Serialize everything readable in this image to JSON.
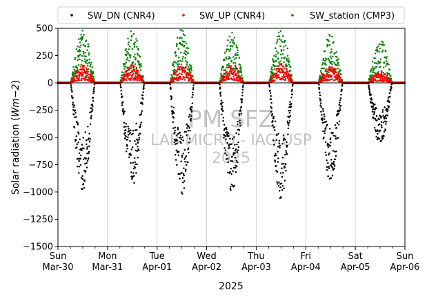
{
  "chart_data": {
    "type": "scatter",
    "title": "",
    "xlabel": "2025",
    "ylabel": "Solar radiation (Wm−2)",
    "ylabel_main": "Solar radiation (",
    "ylabel_unit": "Wm",
    "ylabel_exp": "−2",
    "ylabel_close": ")",
    "ylim": [
      -1500,
      500
    ],
    "yticks": [
      500,
      250,
      0,
      -250,
      -500,
      -750,
      -1000,
      -1250,
      -1500
    ],
    "ytick_labels": [
      "500",
      "250",
      "0",
      "−250",
      "−500",
      "−750",
      "−1000",
      "−1250",
      "−1500"
    ],
    "xlim": [
      "2025-03-30",
      "2025-04-06"
    ],
    "xticks": [
      {
        "day": "Sun",
        "date": "Mar-30"
      },
      {
        "day": "Mon",
        "date": "Mar-31"
      },
      {
        "day": "Tue",
        "date": "Apr-01"
      },
      {
        "day": "Wed",
        "date": "Apr-02"
      },
      {
        "day": "Thu",
        "date": "Apr-03"
      },
      {
        "day": "Fri",
        "date": "Apr-04"
      },
      {
        "day": "Sat",
        "date": "Apr-05"
      },
      {
        "day": "Sun",
        "date": "Apr-06"
      }
    ],
    "grid": "vertical",
    "legend_position": "top",
    "watermark": [
      "PM SFZ",
      "LAB MICRO - IAG USP",
      "2025"
    ],
    "series": [
      {
        "name": "SW_DN (CNR4)",
        "color": "#000000",
        "daily_peak": [
          -1010,
          -950,
          -1030,
          -1040,
          -1070,
          -920,
          -570
        ]
      },
      {
        "name": "SW_UP (CNR4)",
        "color": "#ff0000",
        "daily_peak": [
          160,
          170,
          180,
          175,
          180,
          160,
          100
        ]
      },
      {
        "name": "SW_station (CMP3)",
        "color": "#008000",
        "daily_peak": [
          480,
          490,
          500,
          480,
          500,
          450,
          400
        ]
      }
    ]
  }
}
